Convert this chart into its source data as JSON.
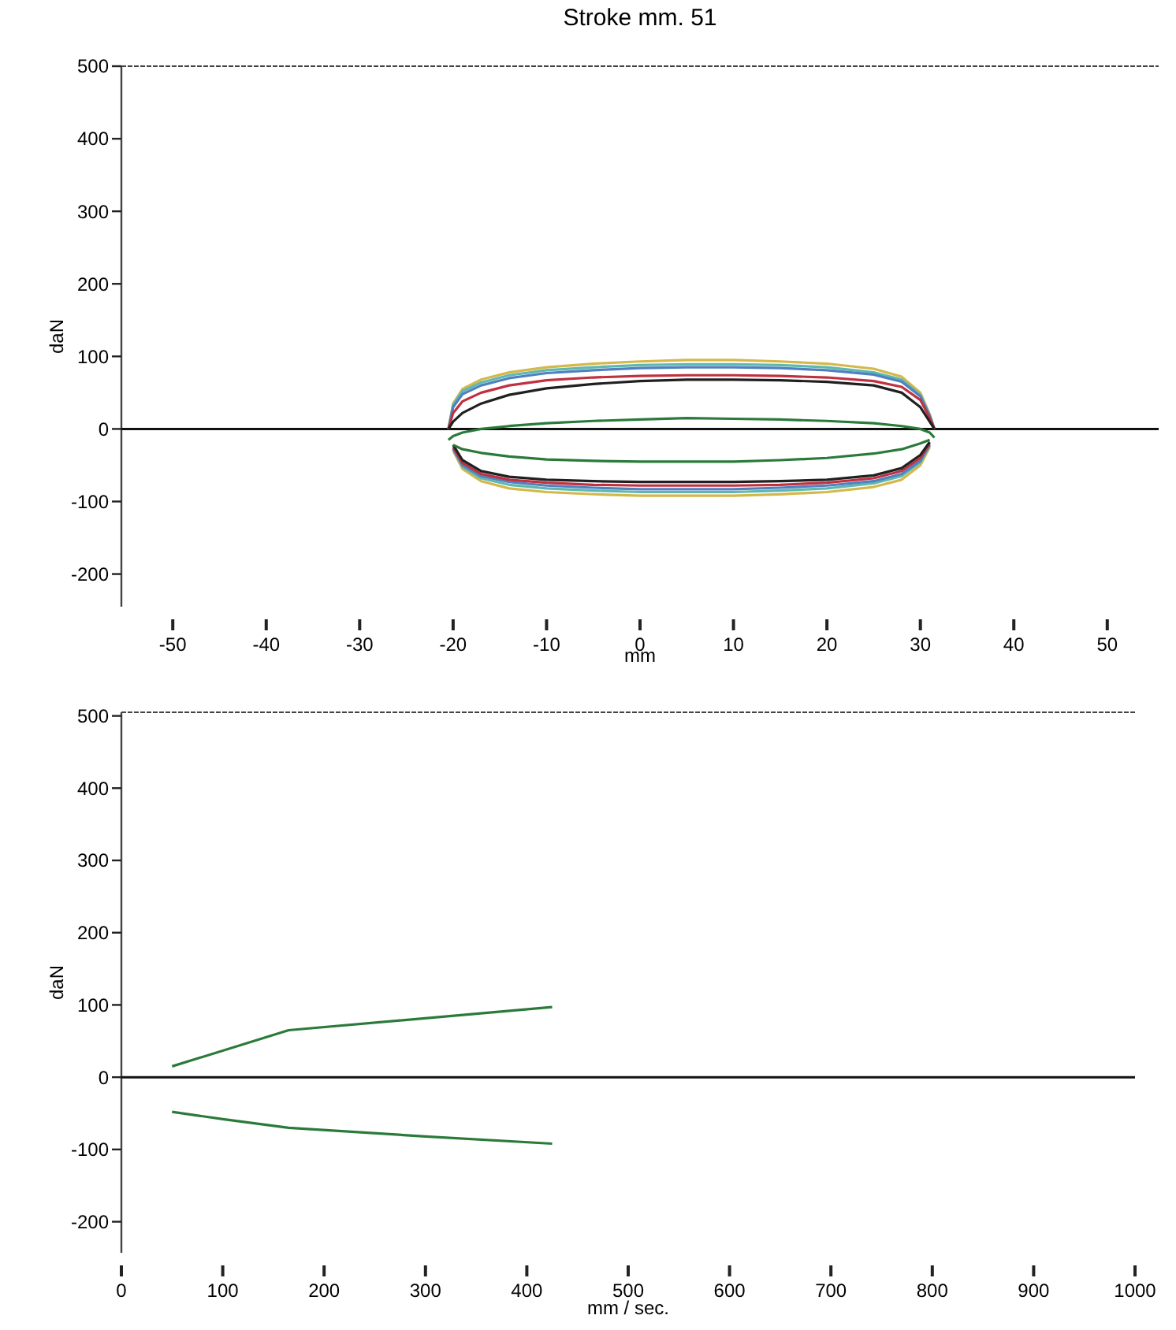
{
  "chart_data": [
    {
      "type": "line",
      "title": "Stroke mm.  51",
      "xlabel": "mm",
      "ylabel": "daN",
      "xlim": [
        -55.5,
        55.5
      ],
      "ylim": [
        -245,
        500
      ],
      "xticks": [
        -50,
        -40,
        -30,
        -20,
        -10,
        0,
        10,
        20,
        30,
        40,
        50
      ],
      "yticks": [
        -200,
        -100,
        0,
        100,
        200,
        300,
        400,
        500
      ],
      "grid": false,
      "marker": "none",
      "line_style": "solid",
      "ref_lines": [
        {
          "axis": "y",
          "value": 0,
          "color": "#111111"
        }
      ],
      "x": [
        -20.5,
        -20,
        -19,
        -17,
        -14,
        -10,
        -5,
        0,
        5,
        10,
        15,
        20,
        25,
        28,
        30,
        31,
        31.5
      ],
      "series": [
        {
          "color": "#d4b84a",
          "values": [
            0,
            35,
            55,
            68,
            78,
            85,
            90,
            93,
            95,
            95,
            93,
            90,
            83,
            72,
            50,
            20,
            0
          ]
        },
        {
          "color": "#d4b84a",
          "values": [
            null,
            -30,
            -55,
            -72,
            -82,
            -87,
            -90,
            -92,
            -92,
            -92,
            -90,
            -87,
            -80,
            -70,
            -50,
            -25,
            null
          ]
        },
        {
          "color": "#5fb8b0",
          "values": [
            0,
            33,
            52,
            64,
            74,
            81,
            85,
            88,
            89,
            89,
            88,
            85,
            78,
            68,
            47,
            19,
            0
          ]
        },
        {
          "color": "#5fb8b0",
          "values": [
            null,
            -28,
            -52,
            -68,
            -77,
            -82,
            -85,
            -87,
            -87,
            -87,
            -85,
            -82,
            -75,
            -65,
            -46,
            -23,
            null
          ]
        },
        {
          "color": "#5080c0",
          "values": [
            0,
            30,
            48,
            60,
            70,
            77,
            81,
            84,
            85,
            85,
            84,
            81,
            75,
            65,
            45,
            18,
            0
          ]
        },
        {
          "color": "#5080c0",
          "values": [
            null,
            -27,
            -50,
            -65,
            -73,
            -78,
            -81,
            -83,
            -83,
            -83,
            -81,
            -78,
            -72,
            -62,
            -44,
            -22,
            null
          ]
        },
        {
          "color": "#c03040",
          "values": [
            0,
            22,
            38,
            50,
            60,
            67,
            71,
            73,
            74,
            74,
            73,
            71,
            66,
            58,
            40,
            15,
            0
          ]
        },
        {
          "color": "#c03040",
          "values": [
            null,
            -25,
            -47,
            -62,
            -70,
            -74,
            -77,
            -78,
            -78,
            -78,
            -77,
            -74,
            -68,
            -58,
            -40,
            -20,
            null
          ]
        },
        {
          "color": "#202020",
          "values": [
            0,
            10,
            22,
            35,
            47,
            56,
            62,
            66,
            68,
            68,
            67,
            65,
            60,
            50,
            30,
            10,
            0
          ]
        },
        {
          "color": "#202020",
          "values": [
            null,
            -22,
            -43,
            -58,
            -66,
            -70,
            -72,
            -73,
            -73,
            -73,
            -72,
            -70,
            -64,
            -54,
            -36,
            -18,
            null
          ]
        },
        {
          "color": "#2a7a3a",
          "values": [
            -15,
            -10,
            -5,
            0,
            4,
            8,
            11,
            13,
            15,
            14,
            13,
            11,
            8,
            4,
            0,
            -5,
            -12
          ]
        },
        {
          "color": "#2a7a3a",
          "values": [
            null,
            -22,
            -28,
            -33,
            -38,
            -42,
            -44,
            -45,
            -45,
            -45,
            -43,
            -40,
            -34,
            -28,
            -20,
            -15,
            null
          ]
        }
      ]
    },
    {
      "type": "line",
      "xlabel": "mm / sec.",
      "ylabel": "daN",
      "xlim": [
        0,
        1000
      ],
      "ylim": [
        -243,
        505
      ],
      "xticks": [
        0,
        100,
        200,
        300,
        400,
        500,
        600,
        700,
        800,
        900,
        1000
      ],
      "yticks": [
        -200,
        -100,
        0,
        100,
        200,
        300,
        400,
        500
      ],
      "grid": false,
      "marker": "none",
      "line_style": "solid",
      "ref_lines": [
        {
          "axis": "y",
          "value": 0,
          "color": "#111111"
        }
      ],
      "series": [
        {
          "color": "#2a7a3a",
          "x": [
            50,
            165,
            425
          ],
          "values": [
            15,
            65,
            97
          ]
        },
        {
          "color": "#2a7a3a",
          "x": [
            50,
            100,
            165,
            300,
            425
          ],
          "values": [
            -48,
            -58,
            -70,
            -82,
            -92
          ]
        }
      ]
    }
  ]
}
